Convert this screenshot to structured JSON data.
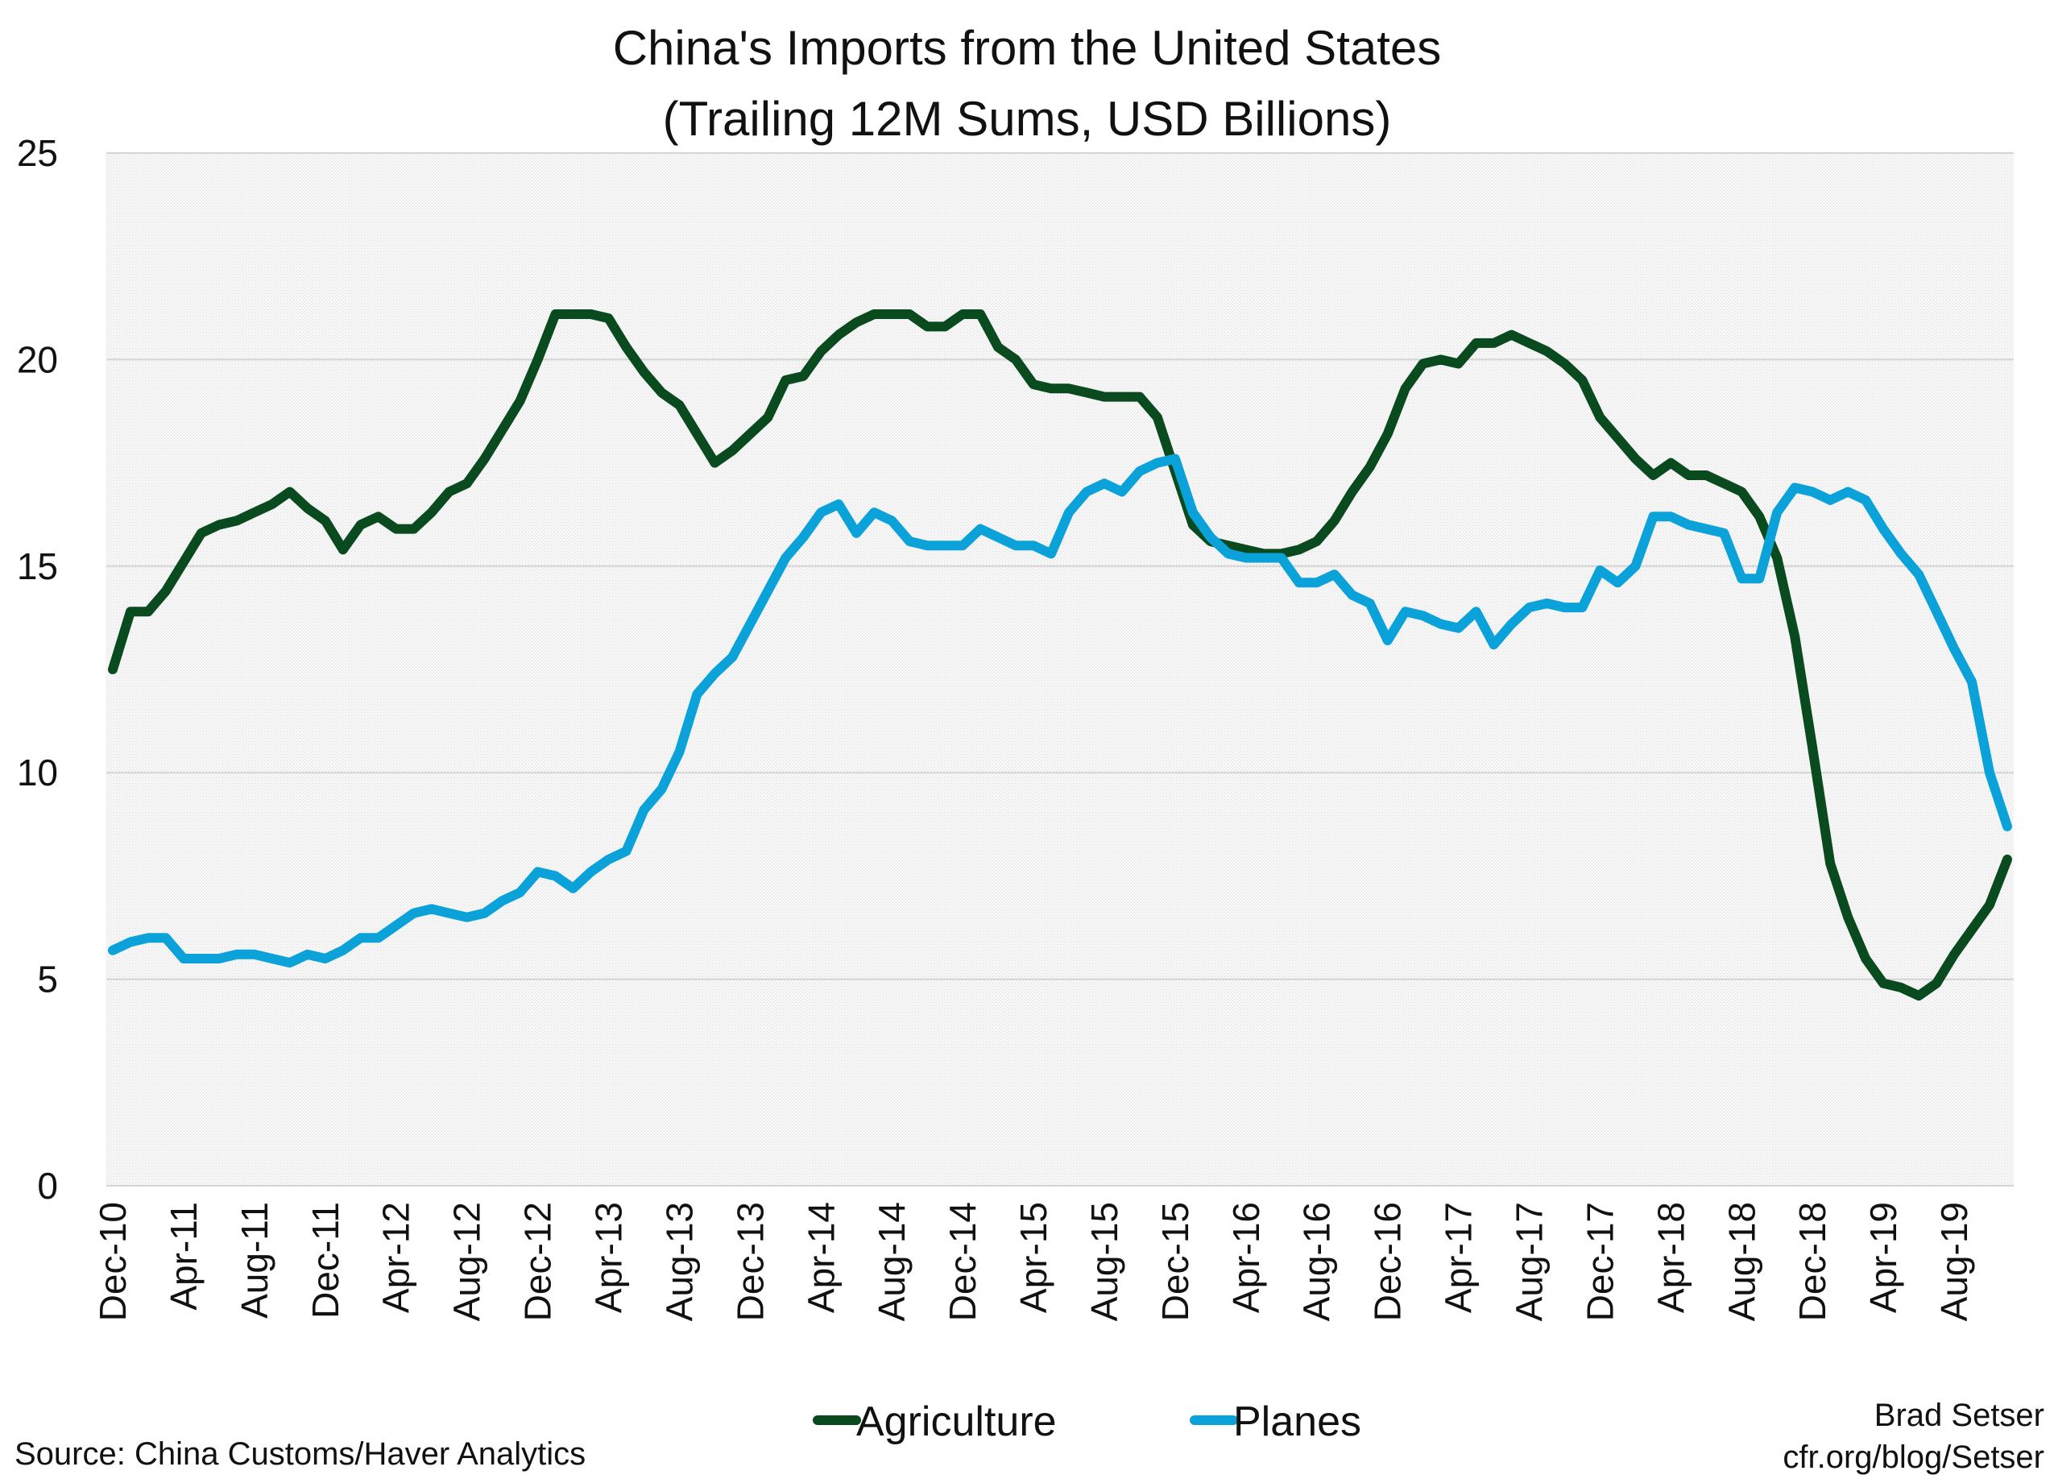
{
  "chart_data": {
    "type": "line",
    "title": "China's Imports from the United States",
    "subtitle": "(Trailing 12M Sums, USD Billions)",
    "xlabel": "",
    "ylabel": "",
    "ylim": [
      0,
      25
    ],
    "yticks": [
      "0",
      "5",
      "10",
      "15",
      "20",
      "25"
    ],
    "x": [
      "Dec-10",
      "Jan-11",
      "Feb-11",
      "Mar-11",
      "Apr-11",
      "May-11",
      "Jun-11",
      "Jul-11",
      "Aug-11",
      "Sep-11",
      "Oct-11",
      "Nov-11",
      "Dec-11",
      "Jan-12",
      "Feb-12",
      "Mar-12",
      "Apr-12",
      "May-12",
      "Jun-12",
      "Jul-12",
      "Aug-12",
      "Sep-12",
      "Oct-12",
      "Nov-12",
      "Dec-12",
      "Jan-13",
      "Feb-13",
      "Mar-13",
      "Apr-13",
      "May-13",
      "Jun-13",
      "Jul-13",
      "Aug-13",
      "Sep-13",
      "Oct-13",
      "Nov-13",
      "Dec-13",
      "Jan-14",
      "Feb-14",
      "Mar-14",
      "Apr-14",
      "May-14",
      "Jun-14",
      "Jul-14",
      "Aug-14",
      "Sep-14",
      "Oct-14",
      "Nov-14",
      "Dec-14",
      "Jan-15",
      "Feb-15",
      "Mar-15",
      "Apr-15",
      "May-15",
      "Jun-15",
      "Jul-15",
      "Aug-15",
      "Sep-15",
      "Oct-15",
      "Nov-15",
      "Dec-15",
      "Jan-16",
      "Feb-16",
      "Mar-16",
      "Apr-16",
      "May-16",
      "Jun-16",
      "Jul-16",
      "Aug-16",
      "Sep-16",
      "Oct-16",
      "Nov-16",
      "Dec-16",
      "Jan-17",
      "Feb-17",
      "Mar-17",
      "Apr-17",
      "May-17",
      "Jun-17",
      "Jul-17",
      "Aug-17",
      "Sep-17",
      "Oct-17",
      "Nov-17",
      "Dec-17",
      "Jan-18",
      "Feb-18",
      "Mar-18",
      "Apr-18",
      "May-18",
      "Jun-18",
      "Jul-18",
      "Aug-18",
      "Sep-18",
      "Oct-18",
      "Nov-18",
      "Dec-18",
      "Jan-19",
      "Feb-19",
      "Mar-19",
      "Apr-19",
      "May-19",
      "Jun-19",
      "Jul-19",
      "Aug-19",
      "Sep-19",
      "Oct-19",
      "Nov-19"
    ],
    "xtick_labels": [
      "Dec-10",
      "Apr-11",
      "Aug-11",
      "Dec-11",
      "Apr-12",
      "Aug-12",
      "Dec-12",
      "Apr-13",
      "Aug-13",
      "Dec-13",
      "Apr-14",
      "Aug-14",
      "Dec-14",
      "Apr-15",
      "Aug-15",
      "Dec-15",
      "Apr-16",
      "Aug-16",
      "Dec-16",
      "Apr-17",
      "Aug-17",
      "Dec-17",
      "Apr-18",
      "Aug-18",
      "Dec-18",
      "Apr-19",
      "Aug-19"
    ],
    "grid": true,
    "legend_position": "bottom-center",
    "series": [
      {
        "name": "Agriculture",
        "color": "#0a4a1f",
        "values": [
          12.5,
          13.9,
          13.9,
          14.4,
          15.1,
          15.8,
          16.0,
          16.1,
          16.3,
          16.5,
          16.8,
          16.4,
          16.1,
          15.4,
          16.0,
          16.2,
          15.9,
          15.9,
          16.3,
          16.8,
          17.0,
          17.6,
          18.3,
          19.0,
          20.0,
          21.1,
          21.1,
          21.1,
          21.0,
          20.3,
          19.7,
          19.2,
          18.9,
          18.2,
          17.5,
          17.8,
          18.2,
          18.6,
          19.5,
          19.6,
          20.2,
          20.6,
          20.9,
          21.1,
          21.1,
          21.1,
          20.8,
          20.8,
          21.1,
          21.1,
          20.3,
          20.0,
          19.4,
          19.3,
          19.3,
          19.2,
          19.1,
          19.1,
          19.1,
          18.6,
          17.3,
          16.0,
          15.6,
          15.5,
          15.4,
          15.3,
          15.3,
          15.4,
          15.6,
          16.1,
          16.8,
          17.4,
          18.2,
          19.3,
          19.9,
          20.0,
          19.9,
          20.4,
          20.4,
          20.6,
          20.4,
          20.2,
          19.9,
          19.5,
          18.6,
          18.1,
          17.6,
          17.2,
          17.5,
          17.2,
          17.2,
          17.0,
          16.8,
          16.2,
          15.2,
          13.3,
          10.6,
          7.8,
          6.5,
          5.5,
          4.9,
          4.8,
          4.6,
          4.9,
          5.6,
          6.2,
          6.8,
          7.9
        ]
      },
      {
        "name": "Planes",
        "color": "#0aa2d8",
        "values": [
          5.7,
          5.9,
          6.0,
          6.0,
          5.5,
          5.5,
          5.5,
          5.6,
          5.6,
          5.5,
          5.4,
          5.6,
          5.5,
          5.7,
          6.0,
          6.0,
          6.3,
          6.6,
          6.7,
          6.6,
          6.5,
          6.6,
          6.9,
          7.1,
          7.6,
          7.5,
          7.2,
          7.6,
          7.9,
          8.1,
          9.1,
          9.6,
          10.5,
          11.9,
          12.4,
          12.8,
          13.6,
          14.4,
          15.2,
          15.7,
          16.3,
          16.5,
          15.8,
          16.3,
          16.1,
          15.6,
          15.5,
          15.5,
          15.5,
          15.9,
          15.7,
          15.5,
          15.5,
          15.3,
          16.3,
          16.8,
          17.0,
          16.8,
          17.3,
          17.5,
          17.6,
          16.3,
          15.7,
          15.3,
          15.2,
          15.2,
          15.2,
          14.6,
          14.6,
          14.8,
          14.3,
          14.1,
          13.2,
          13.9,
          13.8,
          13.6,
          13.5,
          13.9,
          13.1,
          13.6,
          14.0,
          14.1,
          14.0,
          14.0,
          14.9,
          14.6,
          15.0,
          16.2,
          16.2,
          16.0,
          15.9,
          15.8,
          14.7,
          14.7,
          16.3,
          16.9,
          16.8,
          16.6,
          16.8,
          16.6,
          15.9,
          15.3,
          14.8,
          13.9,
          13.0,
          12.2,
          10.0,
          8.7
        ]
      }
    ]
  },
  "notes": {
    "source": "Source: China Customs/Haver Analytics",
    "author": "Brad Setser",
    "url": "cfr.org/blog/Setser"
  }
}
